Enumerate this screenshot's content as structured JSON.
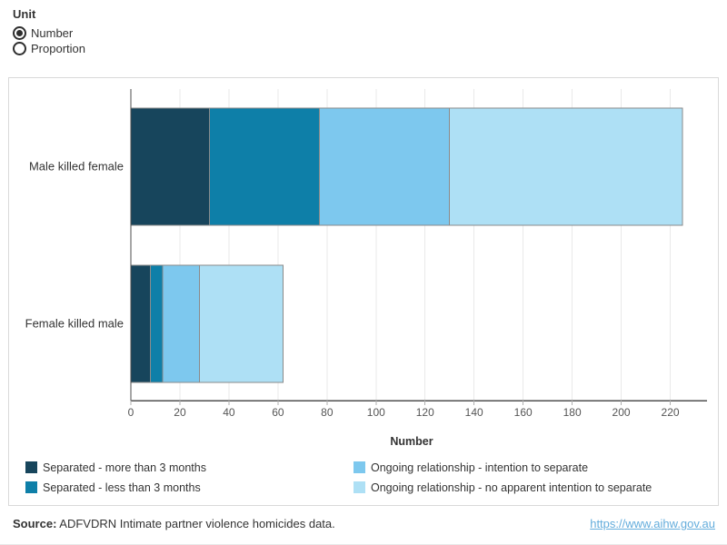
{
  "unit_control": {
    "label": "Unit",
    "options": [
      {
        "label": "Number",
        "selected": true
      },
      {
        "label": "Proportion",
        "selected": false
      }
    ]
  },
  "chart_data": {
    "type": "bar",
    "orientation": "horizontal",
    "stacked": true,
    "categories": [
      "Male killed female",
      "Female killed male"
    ],
    "series": [
      {
        "name": "Separated - more than 3 months",
        "color": "#17455C",
        "values": [
          32,
          8
        ]
      },
      {
        "name": "Separated - less than 3 months",
        "color": "#0E7FA8",
        "values": [
          45,
          5
        ]
      },
      {
        "name": "Ongoing relationship - intention to separate",
        "color": "#7DC8EE",
        "values": [
          53,
          15
        ]
      },
      {
        "name": "Ongoing relationship - no apparent intention to separate",
        "color": "#AEE0F5",
        "values": [
          95,
          34
        ]
      }
    ],
    "totals": [
      225,
      62
    ],
    "xlabel": "Number",
    "xticks": [
      0,
      20,
      40,
      60,
      80,
      100,
      120,
      140,
      160,
      180,
      200,
      220
    ],
    "xlim": [
      0,
      235
    ],
    "grid": true,
    "legend_position": "bottom"
  },
  "colors": {
    "axis": "#4f4f4f",
    "tick": "#b0b0b0",
    "grid": "#e9e9e9",
    "text": "#333333",
    "tick_text": "#555555",
    "bar_border": "#8a8a8a",
    "panel_border": "#d9d9d9",
    "link": "#64ADDC"
  },
  "footer": {
    "source_label": "Source:",
    "source_text": " ADFVDRN Intimate partner violence homicides data.",
    "link": "https://www.aihw.gov.au"
  }
}
